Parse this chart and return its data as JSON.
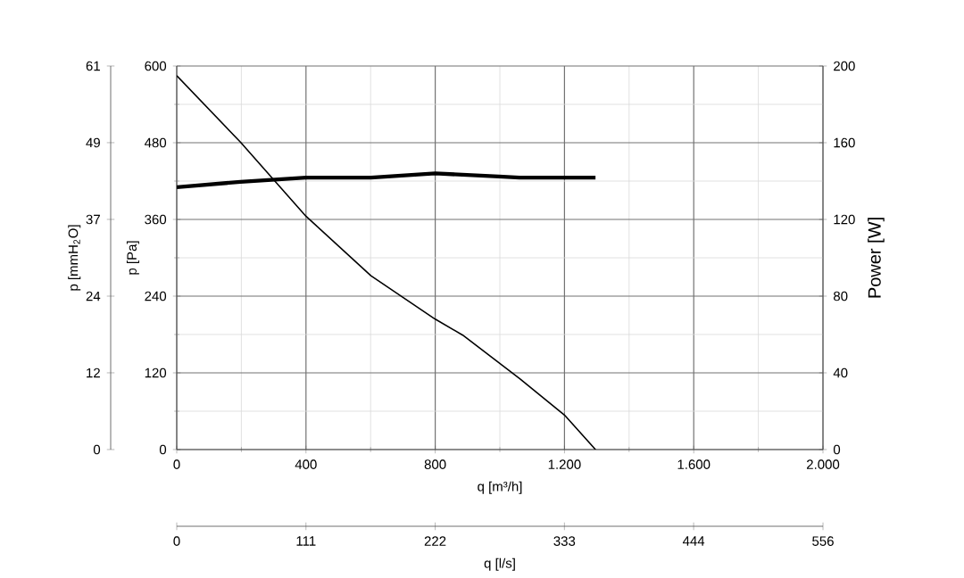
{
  "chart_data": {
    "type": "line",
    "xlabel": "q [m³/h]",
    "ylabel": "p [Pa]",
    "y2label": "Power [W]",
    "y3label": "p [mmH$_{2}$O]",
    "x2label": "q [l/s]",
    "xlim": [
      0,
      2000
    ],
    "xticks": [
      0,
      400,
      800,
      {
        "value": 1200,
        "label": "1.200"
      },
      {
        "value": 1600,
        "label": "1.600"
      },
      {
        "value": 2000,
        "label": "2.000"
      }
    ],
    "ylim": [
      0,
      600
    ],
    "yticks": [
      0,
      120,
      240,
      360,
      480,
      600
    ],
    "y2lim": [
      0,
      200
    ],
    "y2ticks": [
      0,
      40,
      80,
      120,
      160,
      200
    ],
    "y3lim": [
      0,
      61.18
    ],
    "y3ticks": [
      0,
      {
        "value": 12.24,
        "label": "12"
      },
      {
        "value": 24.47,
        "label": "24"
      },
      {
        "value": 36.71,
        "label": "37"
      },
      {
        "value": 48.95,
        "label": "49"
      },
      {
        "value": 61.18,
        "label": "61"
      }
    ],
    "x2lim": [
      0,
      555.6
    ],
    "x2ticks": [
      0,
      {
        "value": 111.1,
        "label": "111"
      },
      {
        "value": 222.2,
        "label": "222"
      },
      {
        "value": 333.3,
        "label": "333"
      },
      {
        "value": 444.4,
        "label": "444"
      },
      {
        "value": 555.6,
        "label": "556"
      }
    ],
    "grid": true,
    "marker": "none",
    "line_style": "solid",
    "series": [
      {
        "color": "#000000",
        "x": [
          0,
          197,
          400,
          601,
          800,
          885,
          1061,
          1200,
          1296
        ],
        "values": [
          585,
          481,
          365,
          272,
          204,
          179,
          111,
          54,
          0
        ]
      },
      {
        "color": "#000000",
        "axis": "y2",
        "x": [
          0,
          197,
          400,
          601,
          800,
          997,
          1061,
          1296
        ],
        "values": [
          136.8,
          139.6,
          141.8,
          141.8,
          144,
          142.4,
          141.8,
          141.8
        ]
      }
    ]
  }
}
